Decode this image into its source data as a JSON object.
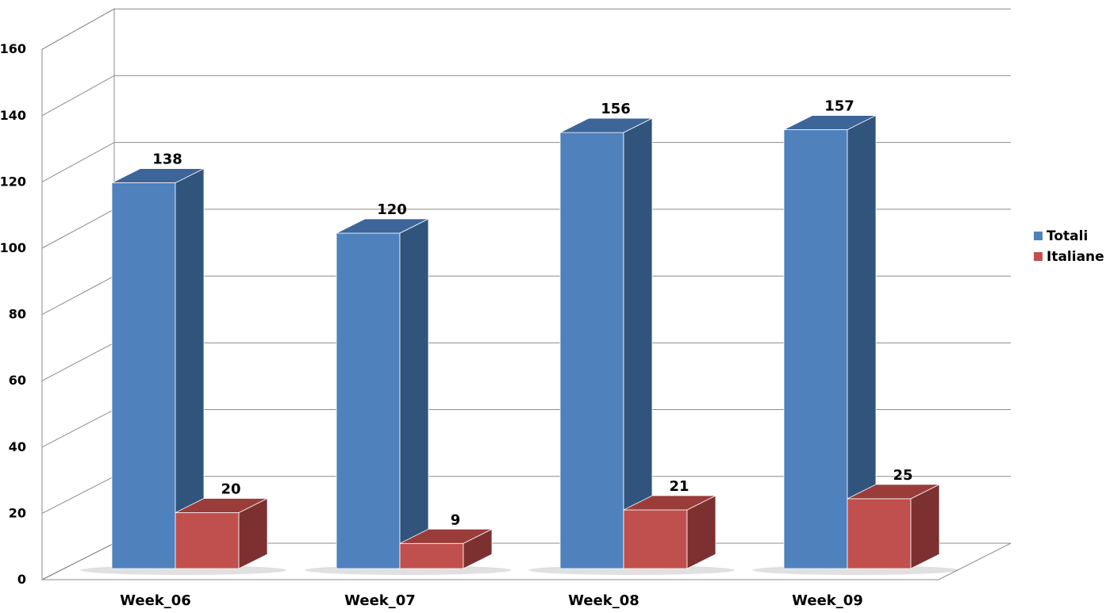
{
  "chart_data": {
    "type": "bar",
    "style": "3d-clustered-column",
    "categories": [
      "Week_06",
      "Week_07",
      "Week_08",
      "Week_09"
    ],
    "series": [
      {
        "name": "Totali",
        "values": [
          138,
          120,
          156,
          157
        ],
        "color": "#4F81BD",
        "side_color": "#31547D",
        "top_color": "#3D6599"
      },
      {
        "name": "Italiane",
        "values": [
          20,
          9,
          21,
          25
        ],
        "color": "#C0504D",
        "side_color": "#7D3030",
        "top_color": "#9A3C3A"
      }
    ],
    "ylim": [
      0,
      160
    ],
    "yticks": [
      "0",
      "20",
      "40",
      "60",
      "80",
      "100",
      "120",
      "140",
      "160"
    ],
    "grid": true,
    "legend_position": "right",
    "title": "",
    "xlabel": "",
    "ylabel": ""
  }
}
